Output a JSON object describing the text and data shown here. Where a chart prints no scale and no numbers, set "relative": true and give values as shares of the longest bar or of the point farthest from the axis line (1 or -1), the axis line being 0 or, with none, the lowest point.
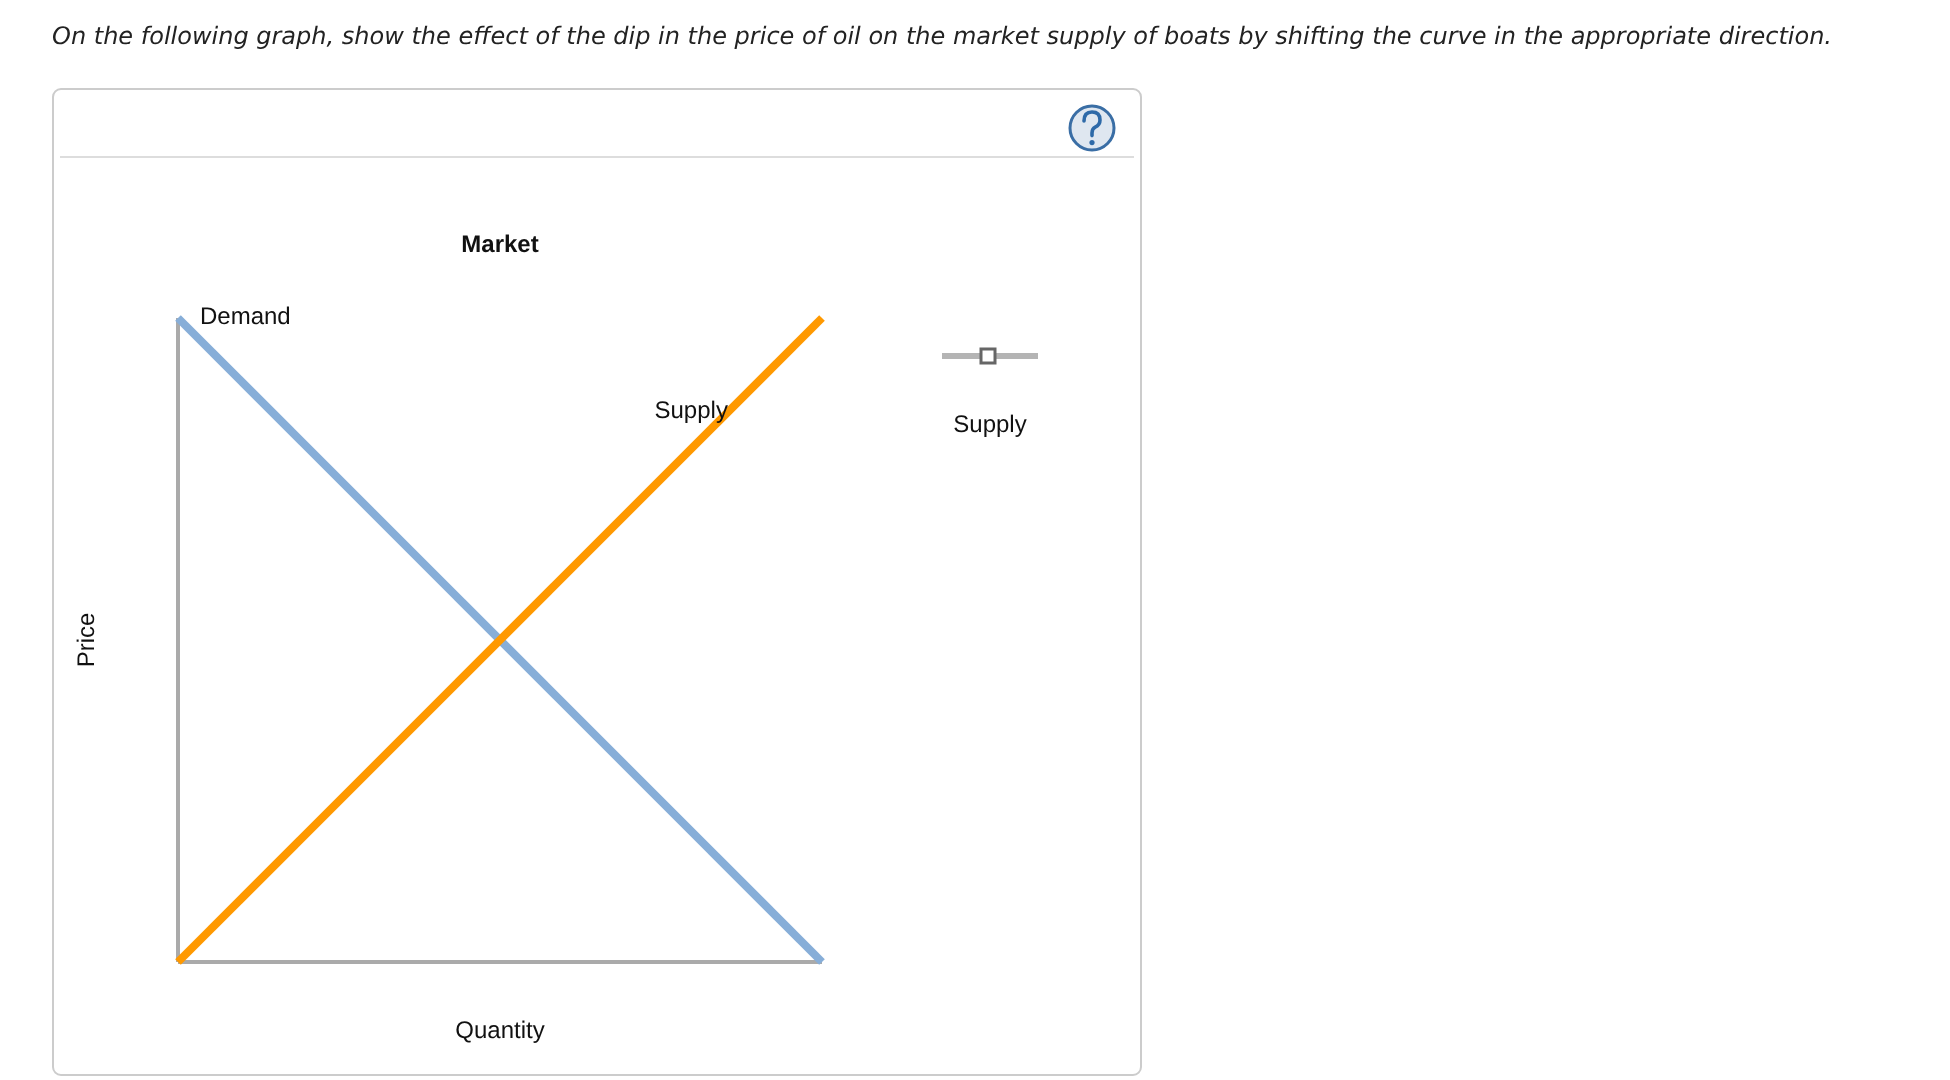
{
  "chart_data": {
    "type": "line",
    "title": "Market",
    "xlabel": "Quantity",
    "ylabel": "Price",
    "categories": [
      null,
      null
    ],
    "relative": true,
    "series": [
      {
        "name": "Demand",
        "color": "#87aed8",
        "values": [
          1,
          0
        ]
      },
      {
        "name": "Supply",
        "color": "#ff9900",
        "values": [
          0,
          1
        ]
      }
    ],
    "annotations": [
      "On the following graph, show the effect of the dip in the price of oil on the market supply of boats by shifting the curve in the appropriate direction.",
      "Supply"
    ]
  }
}
